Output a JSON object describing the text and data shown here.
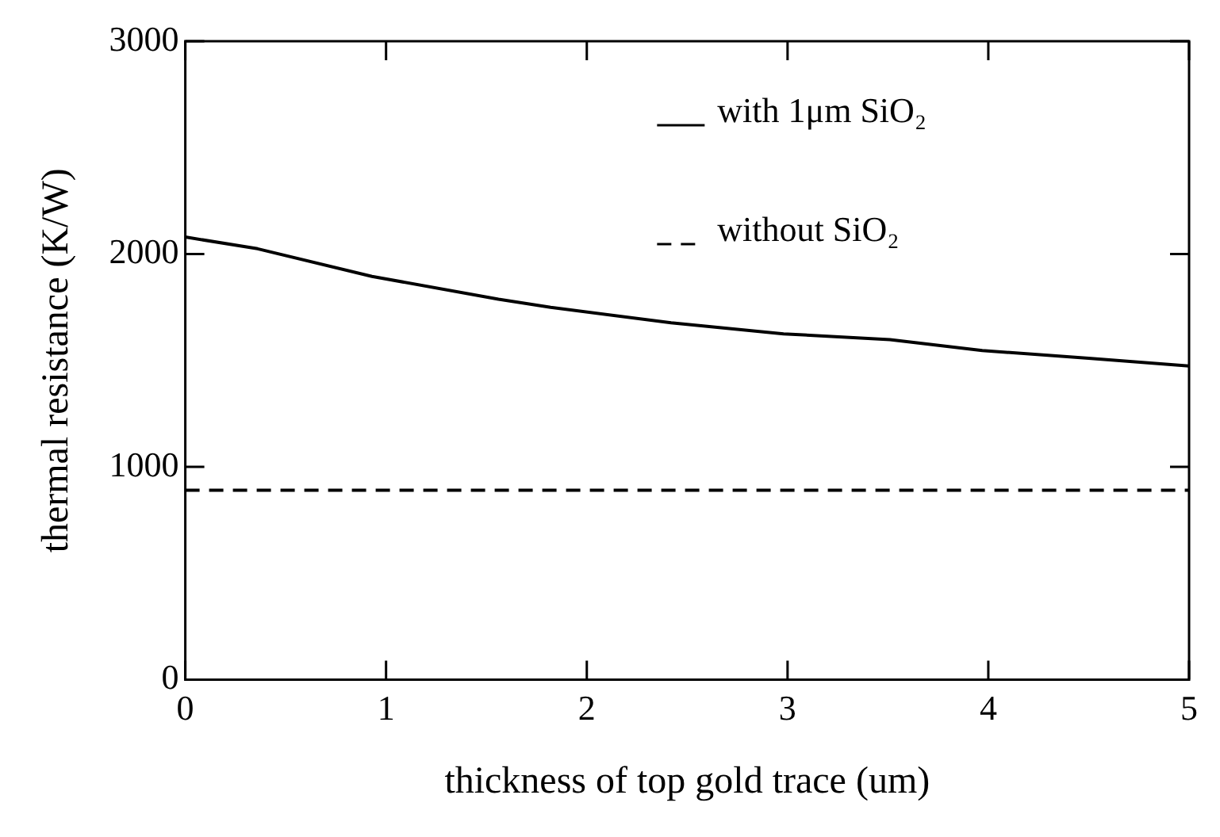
{
  "chart_data": {
    "type": "line",
    "xlabel": "thickness of top gold trace (um)",
    "ylabel": "thermal resistance (K/W)",
    "xlim": [
      0,
      5
    ],
    "ylim": [
      0,
      3000
    ],
    "xticks": [
      0,
      1,
      2,
      3,
      4,
      5
    ],
    "yticks": [
      0,
      1000,
      2000,
      3000
    ],
    "grid": false,
    "legend": "top right",
    "marker": "none",
    "series": [
      {
        "name": "with 1μm SiO₂",
        "color": "#000000",
        "line_style": "solid",
        "x": [
          0,
          0.36,
          0.93,
          1.56,
          1.82,
          2.42,
          2.98,
          3.51,
          3.97,
          4.5,
          5
        ],
        "values": [
          2080,
          2025,
          1895,
          1788,
          1750,
          1677,
          1625,
          1598,
          1547,
          1510,
          1474
        ]
      },
      {
        "name": "without SiO₂",
        "color": "#000000",
        "line_style": "dashed",
        "x": [
          0,
          5
        ],
        "values": [
          890,
          890
        ]
      }
    ]
  }
}
